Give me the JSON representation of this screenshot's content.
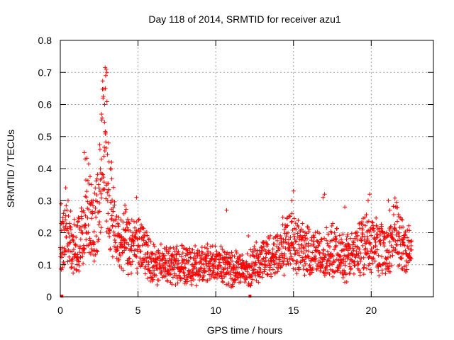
{
  "chart_data": {
    "type": "scatter",
    "title": "Day 118 of 2014, SRMTID for receiver azu1",
    "xlabel": "GPS time / hours",
    "ylabel": "SRMTID / TECUs",
    "xlim": [
      0,
      24
    ],
    "ylim": [
      0,
      0.8
    ],
    "xticks": [
      0,
      5,
      10,
      15,
      20
    ],
    "xtick_labels": [
      "0",
      "5",
      "10",
      "15",
      "20"
    ],
    "yticks": [
      0,
      0.1,
      0.2,
      0.3,
      0.4,
      0.5,
      0.6,
      0.7,
      0.8
    ],
    "ytick_labels": [
      "0",
      "0.1",
      "0.2",
      "0.3",
      "0.4",
      "0.5",
      "0.6",
      "0.7",
      "0.8"
    ],
    "grid": true,
    "legend": "none",
    "marker": "plus",
    "color": "#ff0000",
    "series": [
      {
        "name": "SRMTID",
        "envelope_x": [
          0,
          0.3,
          0.6,
          1.0,
          1.5,
          1.8,
          2.2,
          2.6,
          2.85,
          3.1,
          3.4,
          3.8,
          4.2,
          4.6,
          5.0,
          6.0,
          7.0,
          8.0,
          9.0,
          10.0,
          11.0,
          12.0,
          13.0,
          14.0,
          14.8,
          15.5,
          16.5,
          17.5,
          18.5,
          19.5,
          20.0,
          21.0,
          21.5,
          22.0,
          22.6
        ],
        "envelope_y": [
          0.15,
          0.2,
          0.18,
          0.15,
          0.22,
          0.3,
          0.22,
          0.35,
          0.55,
          0.32,
          0.22,
          0.16,
          0.18,
          0.14,
          0.17,
          0.1,
          0.1,
          0.1,
          0.1,
          0.1,
          0.09,
          0.08,
          0.12,
          0.13,
          0.2,
          0.15,
          0.13,
          0.14,
          0.12,
          0.16,
          0.17,
          0.14,
          0.2,
          0.16,
          0.13
        ],
        "x": [
          0.05,
          0.2,
          0.35,
          0.5,
          0.8,
          1.2,
          1.55,
          1.6,
          2.0,
          2.55,
          2.65,
          2.75,
          2.85,
          2.9,
          2.92,
          2.95,
          3.0,
          3.1,
          3.3,
          4.6,
          4.9,
          10.7,
          12.1,
          14.9,
          15.0,
          16.9,
          17.0,
          18.3,
          19.8,
          19.9,
          21.1,
          21.2,
          22.0
        ],
        "values": [
          0.29,
          0.26,
          0.34,
          0.3,
          0.12,
          0.08,
          0.45,
          0.43,
          0.35,
          0.46,
          0.57,
          0.62,
          0.6,
          0.65,
          0.69,
          0.71,
          0.7,
          0.48,
          0.42,
          0.24,
          0.31,
          0.27,
          0.19,
          0.3,
          0.33,
          0.31,
          0.32,
          0.28,
          0.3,
          0.32,
          0.3,
          0.27,
          0.24
        ]
      }
    ]
  }
}
